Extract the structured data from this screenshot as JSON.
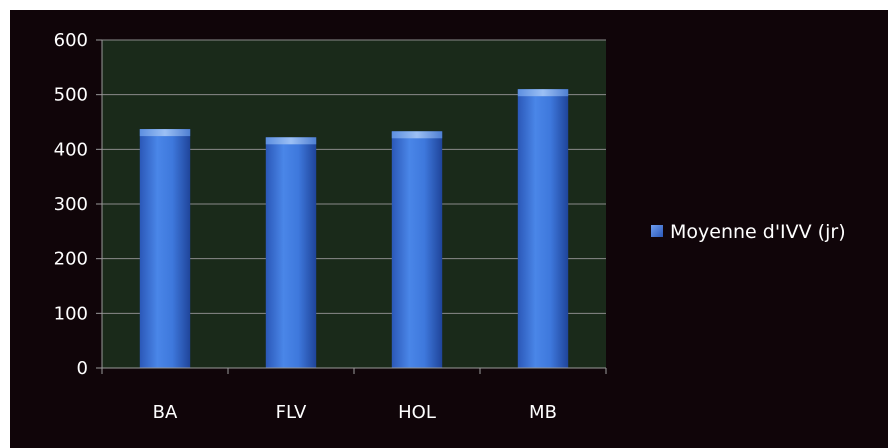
{
  "chart_data": {
    "type": "bar",
    "categories": [
      "BA",
      "FLV",
      "HOL",
      "MB"
    ],
    "series": [
      {
        "name": "Moyenne d'IVV (jr)",
        "values": [
          437,
          422,
          433,
          510
        ],
        "color": "#3b6fd0"
      }
    ],
    "ylim": [
      0,
      600
    ],
    "yticks": [
      0,
      100,
      200,
      300,
      400,
      500,
      600
    ],
    "grid": true,
    "legend_position": "right",
    "plot_background": "#1a2a1a",
    "chart_background": "#100509"
  }
}
